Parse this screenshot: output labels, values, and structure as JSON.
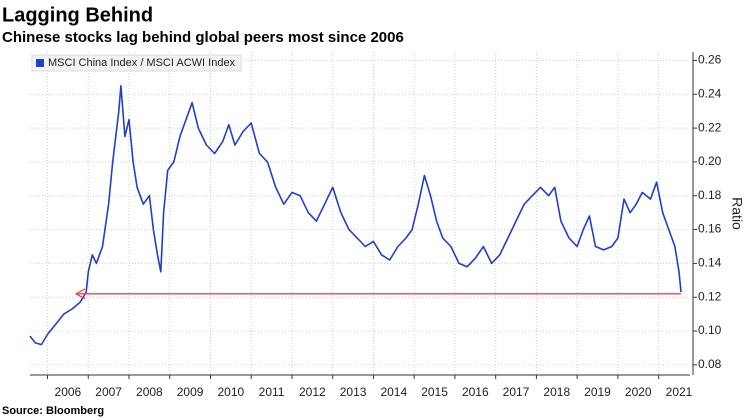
{
  "chart_data": {
    "type": "line",
    "title": "Lagging Behind",
    "subtitle": "Chinese stocks lag behind global peers most since 2006",
    "source": "Source: Bloomberg",
    "y_label": "Ratio",
    "xlim": [
      2005.57,
      2021.77
    ],
    "xticks": [
      2006,
      2007,
      2008,
      2009,
      2010,
      2011,
      2012,
      2013,
      2014,
      2015,
      2016,
      2017,
      2018,
      2019,
      2020,
      2021
    ],
    "ylim": [
      0.074,
      0.265
    ],
    "yticks": [
      0.08,
      {
        "value": 0.1,
        "label": "0.10"
      },
      0.12,
      0.14,
      0.16,
      0.18,
      {
        "value": 0.2,
        "label": "0.20"
      },
      0.22,
      0.24,
      0.26
    ],
    "grid": true,
    "legend": "top-left",
    "series": [
      {
        "name": "MSCI China Index / MSCI ACWI Index",
        "color": "#1f3fd0",
        "x": [
          2005.57,
          2005.7,
          2005.85,
          2006.0,
          2006.2,
          2006.4,
          2006.6,
          2006.8,
          2006.95,
          2007.0,
          2007.1,
          2007.2,
          2007.35,
          2007.5,
          2007.6,
          2007.75,
          2007.8,
          2007.9,
          2008.0,
          2008.1,
          2008.2,
          2008.35,
          2008.5,
          2008.6,
          2008.7,
          2008.78,
          2008.85,
          2008.95,
          2009.1,
          2009.25,
          2009.4,
          2009.55,
          2009.7,
          2009.9,
          2010.1,
          2010.3,
          2010.45,
          2010.6,
          2010.8,
          2011.0,
          2011.2,
          2011.4,
          2011.6,
          2011.8,
          2012.0,
          2012.2,
          2012.4,
          2012.6,
          2012.8,
          2013.0,
          2013.2,
          2013.4,
          2013.6,
          2013.8,
          2014.0,
          2014.2,
          2014.4,
          2014.6,
          2014.8,
          2014.95,
          2015.1,
          2015.25,
          2015.4,
          2015.55,
          2015.7,
          2015.9,
          2016.1,
          2016.3,
          2016.5,
          2016.7,
          2016.9,
          2017.1,
          2017.3,
          2017.5,
          2017.7,
          2017.9,
          2018.1,
          2018.3,
          2018.45,
          2018.6,
          2018.8,
          2019.0,
          2019.15,
          2019.3,
          2019.45,
          2019.65,
          2019.85,
          2020.0,
          2020.15,
          2020.3,
          2020.45,
          2020.6,
          2020.8,
          2020.95,
          2021.1,
          2021.25,
          2021.4,
          2021.5,
          2021.55
        ],
        "values": [
          0.097,
          0.093,
          0.092,
          0.098,
          0.104,
          0.11,
          0.113,
          0.117,
          0.123,
          0.135,
          0.145,
          0.14,
          0.15,
          0.175,
          0.2,
          0.23,
          0.245,
          0.215,
          0.225,
          0.2,
          0.185,
          0.175,
          0.18,
          0.16,
          0.145,
          0.135,
          0.17,
          0.195,
          0.2,
          0.215,
          0.225,
          0.235,
          0.22,
          0.21,
          0.205,
          0.212,
          0.222,
          0.21,
          0.218,
          0.223,
          0.205,
          0.2,
          0.185,
          0.175,
          0.182,
          0.18,
          0.17,
          0.165,
          0.175,
          0.185,
          0.17,
          0.16,
          0.155,
          0.15,
          0.153,
          0.145,
          0.142,
          0.15,
          0.155,
          0.16,
          0.175,
          0.192,
          0.18,
          0.165,
          0.155,
          0.15,
          0.14,
          0.138,
          0.143,
          0.15,
          0.14,
          0.145,
          0.155,
          0.165,
          0.175,
          0.18,
          0.185,
          0.18,
          0.185,
          0.165,
          0.155,
          0.15,
          0.16,
          0.168,
          0.15,
          0.148,
          0.15,
          0.155,
          0.178,
          0.17,
          0.175,
          0.182,
          0.178,
          0.188,
          0.17,
          0.16,
          0.15,
          0.135,
          0.123
        ]
      }
    ],
    "reference_line": {
      "y": 0.122,
      "x": [
        2006.7,
        2021.55
      ],
      "color": "#e8474a"
    }
  }
}
